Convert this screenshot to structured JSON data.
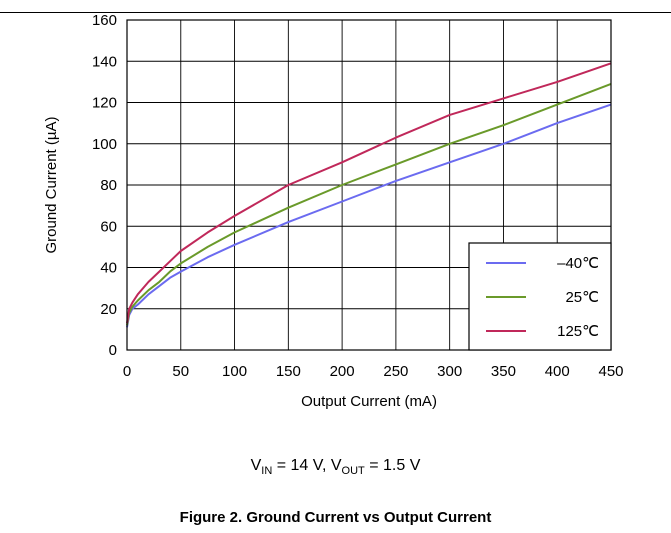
{
  "chart_data": {
    "type": "line",
    "xlabel": "Output Current (mA)",
    "ylabel": "Ground Current (µA)",
    "xlim": [
      0,
      450
    ],
    "ylim": [
      0,
      160
    ],
    "x_ticks": [
      0,
      50,
      100,
      150,
      200,
      250,
      300,
      350,
      400,
      450
    ],
    "y_ticks": [
      0,
      20,
      40,
      60,
      80,
      100,
      120,
      140,
      160
    ],
    "grid": true,
    "legend_position": "bottom-right",
    "series": [
      {
        "name": "–40℃",
        "color": "#6b6bf0",
        "x": [
          0,
          2,
          5,
          10,
          20,
          30,
          40,
          50,
          75,
          100,
          150,
          200,
          250,
          300,
          350,
          400,
          450
        ],
        "y": [
          11,
          17,
          20,
          22,
          27,
          31,
          35,
          38,
          45,
          51,
          62,
          72,
          82,
          91,
          100,
          110,
          119
        ]
      },
      {
        "name": "25℃",
        "color": "#6a9a2a",
        "x": [
          0,
          2,
          5,
          10,
          20,
          30,
          40,
          50,
          75,
          100,
          150,
          200,
          250,
          300,
          350,
          400,
          450
        ],
        "y": [
          12,
          18,
          21,
          24,
          29,
          33,
          38,
          42,
          50,
          57,
          69,
          80,
          90,
          100,
          109,
          119,
          129
        ]
      },
      {
        "name": "125℃",
        "color": "#c0285a",
        "x": [
          0,
          2,
          5,
          10,
          20,
          30,
          40,
          50,
          75,
          100,
          150,
          200,
          250,
          300,
          350,
          400,
          450
        ],
        "y": [
          13,
          20,
          23,
          27,
          33,
          38,
          43,
          48,
          57,
          65,
          80,
          91,
          103,
          114,
          122,
          130,
          139
        ]
      }
    ]
  },
  "conditions": {
    "vin_sym": "V",
    "vin_sub": "IN",
    "vin_val": " = 14 V, ",
    "vout_sym": "V",
    "vout_sub": "OUT",
    "vout_val": " = 1.5 V"
  },
  "caption": "Figure 2.  Ground Current vs Output Current"
}
